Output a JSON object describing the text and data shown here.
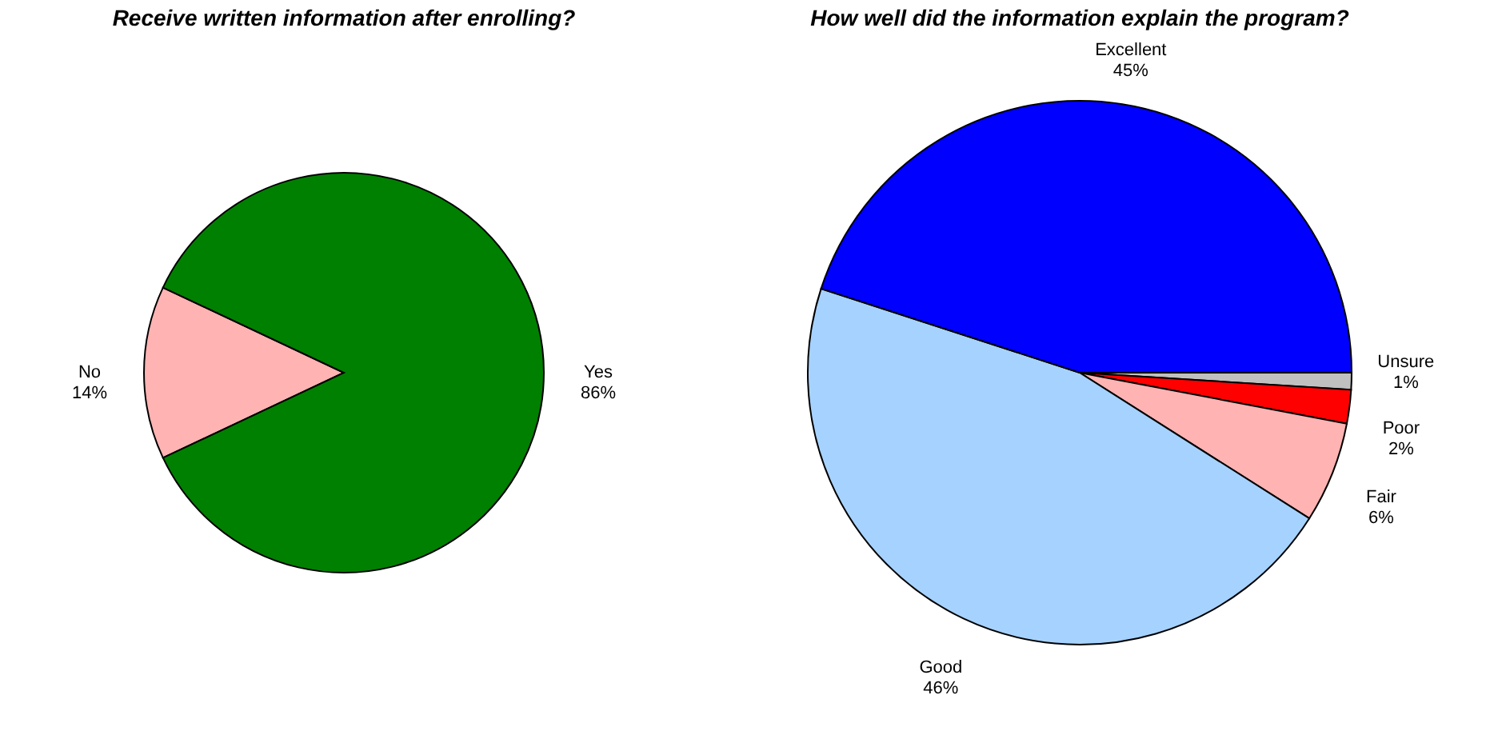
{
  "chart_data": [
    {
      "type": "pie",
      "title": "Receive written information after enrolling?",
      "categories": [
        "No",
        "Yes"
      ],
      "values": [
        14,
        86
      ],
      "colors": [
        "#ffb3b3",
        "#008000"
      ],
      "value_labels": [
        "14%",
        "86%"
      ],
      "legend": false
    },
    {
      "type": "pie",
      "title": "How well did the information explain the program?",
      "categories": [
        "Unsure",
        "Poor",
        "Fair",
        "Good",
        "Excellent"
      ],
      "values": [
        1,
        2,
        6,
        46,
        45
      ],
      "colors": [
        "#c0c0c0",
        "#ff0000",
        "#ffb3b3",
        "#a6d2ff",
        "#0000ff"
      ],
      "value_labels": [
        "1%",
        "2%",
        "6%",
        "46%",
        "45%"
      ],
      "legend": false
    }
  ]
}
